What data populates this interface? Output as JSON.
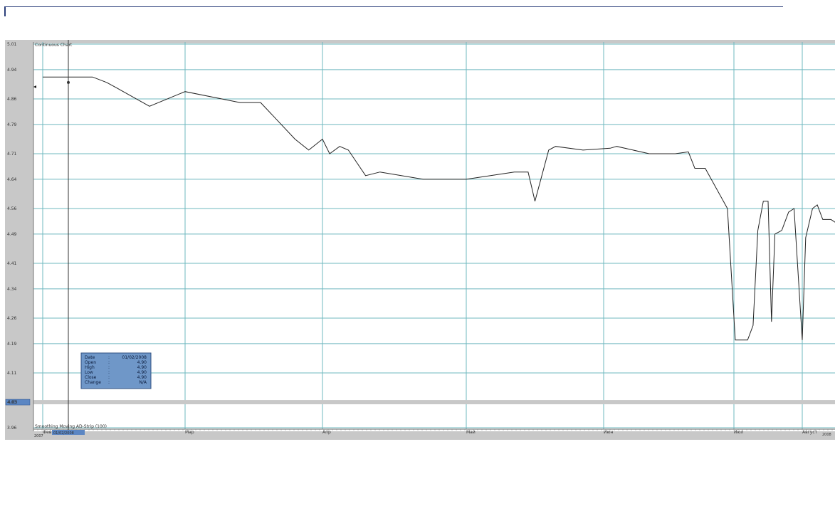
{
  "chart_data": {
    "type": "line",
    "title": "Continuous Chart",
    "footer_label": "Smoothing Moving AD-Strip (100)",
    "y_ticks": [
      "5.01",
      "4.94",
      "4.86",
      "4.79",
      "4.71",
      "4.64",
      "4.56",
      "4.49",
      "4.41",
      "4.34",
      "4.26",
      "4.19",
      "4.11",
      "4.03",
      "3.96"
    ],
    "ylim": [
      3.96,
      5.01
    ],
    "current_price": "4.03",
    "x_months": [
      "Фев",
      "Мар",
      "Апр",
      "Май",
      "Июн",
      "Июл",
      "Август"
    ],
    "x_start_year": "2007",
    "x_end_year": "2008",
    "selected_date": "01/02/2008",
    "grid": true,
    "series": [
      {
        "values": [
          {
            "x": 0.0,
            "y": 4.92
          },
          {
            "x": 0.35,
            "y": 4.92
          },
          {
            "x": 0.45,
            "y": 4.905
          },
          {
            "x": 0.52,
            "y": 4.89
          },
          {
            "x": 0.75,
            "y": 4.84
          },
          {
            "x": 1.0,
            "y": 4.88
          },
          {
            "x": 1.4,
            "y": 4.85
          },
          {
            "x": 1.55,
            "y": 4.85
          },
          {
            "x": 1.8,
            "y": 4.75
          },
          {
            "x": 1.9,
            "y": 4.72
          },
          {
            "x": 2.0,
            "y": 4.75
          },
          {
            "x": 2.05,
            "y": 4.71
          },
          {
            "x": 2.12,
            "y": 4.73
          },
          {
            "x": 2.18,
            "y": 4.72
          },
          {
            "x": 2.3,
            "y": 4.65
          },
          {
            "x": 2.4,
            "y": 4.66
          },
          {
            "x": 2.7,
            "y": 4.64
          },
          {
            "x": 3.0,
            "y": 4.64
          },
          {
            "x": 3.35,
            "y": 4.66
          },
          {
            "x": 3.45,
            "y": 4.66
          },
          {
            "x": 3.5,
            "y": 4.58
          },
          {
            "x": 3.6,
            "y": 4.72
          },
          {
            "x": 3.65,
            "y": 4.73
          },
          {
            "x": 3.85,
            "y": 4.72
          },
          {
            "x": 4.05,
            "y": 4.725
          },
          {
            "x": 4.1,
            "y": 4.73
          },
          {
            "x": 4.35,
            "y": 4.71
          },
          {
            "x": 4.55,
            "y": 4.71
          },
          {
            "x": 4.65,
            "y": 4.715
          },
          {
            "x": 4.7,
            "y": 4.67
          },
          {
            "x": 4.78,
            "y": 4.67
          },
          {
            "x": 4.95,
            "y": 4.56
          },
          {
            "x": 5.02,
            "y": 4.2
          },
          {
            "x": 5.2,
            "y": 4.2
          },
          {
            "x": 5.28,
            "y": 4.24
          },
          {
            "x": 5.35,
            "y": 4.5
          },
          {
            "x": 5.43,
            "y": 4.58
          },
          {
            "x": 5.5,
            "y": 4.58
          },
          {
            "x": 5.55,
            "y": 4.25
          },
          {
            "x": 5.6,
            "y": 4.49
          },
          {
            "x": 5.7,
            "y": 4.5
          },
          {
            "x": 5.8,
            "y": 4.55
          },
          {
            "x": 5.88,
            "y": 4.56
          },
          {
            "x": 6.0,
            "y": 4.2
          },
          {
            "x": 6.05,
            "y": 4.48
          },
          {
            "x": 6.15,
            "y": 4.56
          },
          {
            "x": 6.22,
            "y": 4.57
          },
          {
            "x": 6.3,
            "y": 4.53
          },
          {
            "x": 6.42,
            "y": 4.53
          },
          {
            "x": 6.5,
            "y": 4.52
          },
          {
            "x": 6.6,
            "y": 4.52
          },
          {
            "x": 6.72,
            "y": 4.5
          },
          {
            "x": 6.8,
            "y": 4.5
          },
          {
            "x": 6.9,
            "y": 4.3
          },
          {
            "x": 7.0,
            "y": 4.44
          },
          {
            "x": 7.1,
            "y": 4.38
          },
          {
            "x": 7.2,
            "y": 4.44
          },
          {
            "x": 7.3,
            "y": 4.53
          },
          {
            "x": 7.38,
            "y": 4.54
          },
          {
            "x": 7.45,
            "y": 4.2
          },
          {
            "x": 7.6,
            "y": 4.53
          }
        ]
      }
    ]
  },
  "tooltip": {
    "rows": [
      {
        "label": "Date",
        "value": "01/02/2008"
      },
      {
        "label": "Open",
        "value": "4.90"
      },
      {
        "label": "High",
        "value": "4.90"
      },
      {
        "label": "Low",
        "value": "4.90"
      },
      {
        "label": "Close",
        "value": "4.90"
      },
      {
        "label": "Change",
        "value": "N/A"
      }
    ]
  },
  "colors": {
    "grid": "#6fb8bf",
    "panel": "#c8c8c8",
    "plot_bg": "#ffffff",
    "line": "#222222",
    "tooltip_bg": "#6f97c8",
    "price_tag_bg": "#5b86c3",
    "topbar": "#2b3f7a"
  }
}
